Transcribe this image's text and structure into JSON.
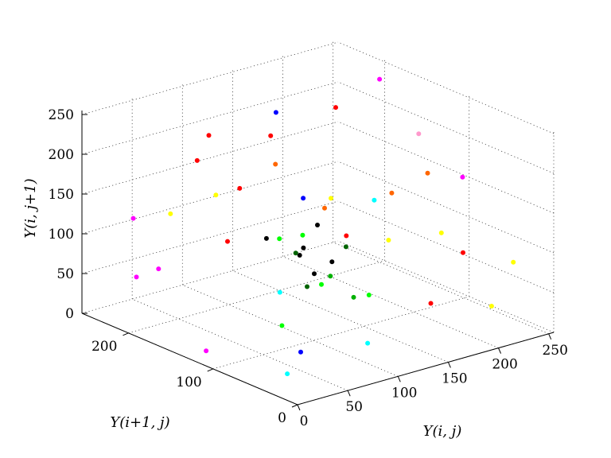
{
  "chart_data": {
    "type": "scatter",
    "projection": "3d",
    "title": "",
    "xlabel": "Y(i, j)",
    "ylabel": "Y(i+1, j)",
    "zlabel": "Y(i, j+1)",
    "x_ticks": [
      "0",
      "50",
      "100",
      "150",
      "200",
      "250"
    ],
    "y_ticks": [
      "0",
      "100",
      "200"
    ],
    "z_ticks": [
      "0",
      "50",
      "100",
      "150",
      "200",
      "250"
    ],
    "xlim": [
      0,
      255
    ],
    "ylim": [
      0,
      255
    ],
    "zlim": [
      0,
      255
    ],
    "grid": true,
    "legend": false,
    "palette": [
      "#000000",
      "#006400",
      "#00b000",
      "#00ff00",
      "#00ffff",
      "#0000ff",
      "#ff00ff",
      "#ff0000",
      "#ff6600",
      "#ffff00",
      "#ff9999",
      "#a020f0",
      "#cc6600"
    ],
    "points": [
      [
        56,
        88,
        149,
        "#00ff00"
      ],
      [
        200,
        130,
        77,
        "#ffff00"
      ],
      [
        120,
        140,
        82,
        "#000000"
      ],
      [
        35,
        60,
        60,
        "#00ff00"
      ],
      [
        90,
        100,
        120,
        "#000000"
      ],
      [
        210,
        20,
        40,
        "#ffff00"
      ],
      [
        60,
        190,
        200,
        "#ff0000"
      ],
      [
        150,
        210,
        190,
        "#ff0000"
      ],
      [
        30,
        230,
        120,
        "#ff00ff"
      ],
      [
        240,
        90,
        160,
        "#ff00ff"
      ],
      [
        100,
        80,
        90,
        "#00b000"
      ],
      [
        110,
        90,
        100,
        "#000000"
      ],
      [
        95,
        115,
        105,
        "#006400"
      ],
      [
        130,
        70,
        60,
        "#00ff00"
      ],
      [
        70,
        120,
        130,
        "#000000"
      ],
      [
        45,
        150,
        180,
        "#ffff00"
      ],
      [
        180,
        60,
        200,
        "#ff6600"
      ],
      [
        200,
        180,
        60,
        "#ff0000"
      ],
      [
        20,
        20,
        50,
        "#0000ff"
      ],
      [
        15,
        30,
        20,
        "#00ffff"
      ],
      [
        250,
        200,
        230,
        "#ff00ff"
      ],
      [
        240,
        240,
        180,
        "#ff0000"
      ],
      [
        220,
        150,
        120,
        "#ff6600"
      ],
      [
        80,
        200,
        220,
        "#ff0000"
      ],
      [
        30,
        200,
        70,
        "#ff00ff"
      ],
      [
        160,
        20,
        150,
        "#ffff00"
      ],
      [
        190,
        30,
        110,
        "#ff0000"
      ],
      [
        110,
        40,
        200,
        "#00ffff"
      ],
      [
        140,
        100,
        40,
        "#00b000"
      ],
      [
        60,
        60,
        100,
        "#006400"
      ],
      [
        125,
        125,
        125,
        "#000000"
      ],
      [
        105,
        105,
        80,
        "#000000"
      ],
      [
        85,
        95,
        140,
        "#00ff00"
      ],
      [
        115,
        130,
        160,
        "#0000ff"
      ],
      [
        75,
        110,
        65,
        "#00ffff"
      ],
      [
        170,
        170,
        110,
        "#ff6600"
      ],
      [
        210,
        210,
        90,
        "#ffff00"
      ],
      [
        230,
        130,
        200,
        "#ff99cc"
      ],
      [
        25,
        180,
        150,
        "#ffff00"
      ],
      [
        50,
        250,
        30,
        "#ff00ff"
      ],
      [
        130,
        180,
        240,
        "#0000ff"
      ],
      [
        150,
        150,
        30,
        "#00ff00"
      ],
      [
        200,
        80,
        20,
        "#ff0000"
      ],
      [
        240,
        30,
        80,
        "#ffff00"
      ],
      [
        180,
        240,
        130,
        "#ff6600"
      ],
      [
        10,
        120,
        10,
        "#ff00ff"
      ],
      [
        95,
        30,
        30,
        "#00ffff"
      ],
      [
        35,
        110,
        210,
        "#ff0000"
      ],
      [
        65,
        160,
        110,
        "#ff0000"
      ],
      [
        145,
        115,
        95,
        "#006400"
      ]
    ]
  }
}
